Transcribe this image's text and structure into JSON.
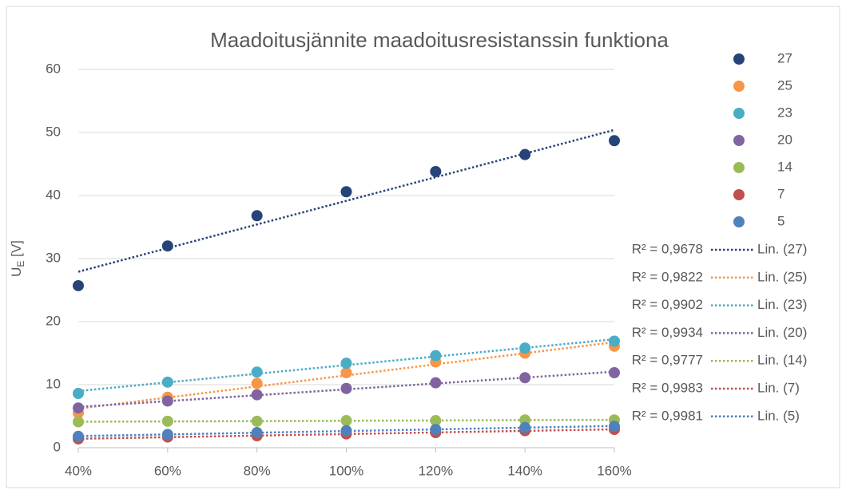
{
  "chart_data": {
    "type": "scatter",
    "title": "Maadoitusjännite maadoitusresistanssin funktiona",
    "y_label": {
      "main": "U",
      "sub": "E",
      "unit": " [V]"
    },
    "x": [
      40,
      60,
      80,
      100,
      120,
      140,
      160
    ],
    "xlim": [
      40,
      160
    ],
    "xticks": [
      {
        "value": 40,
        "label": "40%"
      },
      {
        "value": 60,
        "label": "60%"
      },
      {
        "value": 80,
        "label": "80%"
      },
      {
        "value": 100,
        "label": "100%"
      },
      {
        "value": 120,
        "label": "120%"
      },
      {
        "value": 140,
        "label": "140%"
      },
      {
        "value": 160,
        "label": "160%"
      }
    ],
    "ylim": [
      0,
      60
    ],
    "yticks": [
      0,
      10,
      20,
      30,
      40,
      50,
      60
    ],
    "grid": true,
    "legend": "right",
    "series": [
      {
        "name": "27",
        "color": "#264478",
        "values": [
          25.7,
          32.0,
          36.8,
          40.6,
          43.8,
          46.5,
          48.7
        ],
        "trendline": {
          "name": "Lin. (27)",
          "r2": "R² = 0,9678"
        }
      },
      {
        "name": "25",
        "color": "#f79646",
        "values": [
          5.5,
          8.0,
          10.2,
          11.9,
          13.6,
          15.0,
          16.1
        ],
        "trendline": {
          "name": "Lin. (25)",
          "r2": "R² = 0,9822"
        }
      },
      {
        "name": "23",
        "color": "#4bacc6",
        "values": [
          8.6,
          10.4,
          12.0,
          13.4,
          14.6,
          15.8,
          16.9
        ],
        "trendline": {
          "name": "Lin. (23)",
          "r2": "R² = 0,9902"
        }
      },
      {
        "name": "20",
        "color": "#8064a2",
        "values": [
          6.3,
          7.4,
          8.4,
          9.4,
          10.3,
          11.1,
          11.9
        ],
        "trendline": {
          "name": "Lin. (20)",
          "r2": "R² = 0,9934"
        }
      },
      {
        "name": "14",
        "color": "#9bbb59",
        "values": [
          4.1,
          4.2,
          4.2,
          4.3,
          4.3,
          4.4,
          4.4
        ],
        "trendline": {
          "name": "Lin. (14)",
          "r2": "R² = 0,9777"
        }
      },
      {
        "name": "7",
        "color": "#c0504d",
        "values": [
          1.4,
          1.7,
          1.9,
          2.2,
          2.4,
          2.7,
          2.9
        ],
        "trendline": {
          "name": "Lin. (7)",
          "r2": "R² = 0,9983"
        }
      },
      {
        "name": "5",
        "color": "#4f81bd",
        "values": [
          1.8,
          2.1,
          2.4,
          2.7,
          2.9,
          3.2,
          3.4
        ],
        "trendline": {
          "name": "Lin. (5)",
          "r2": "R² = 0,9981"
        }
      }
    ]
  }
}
